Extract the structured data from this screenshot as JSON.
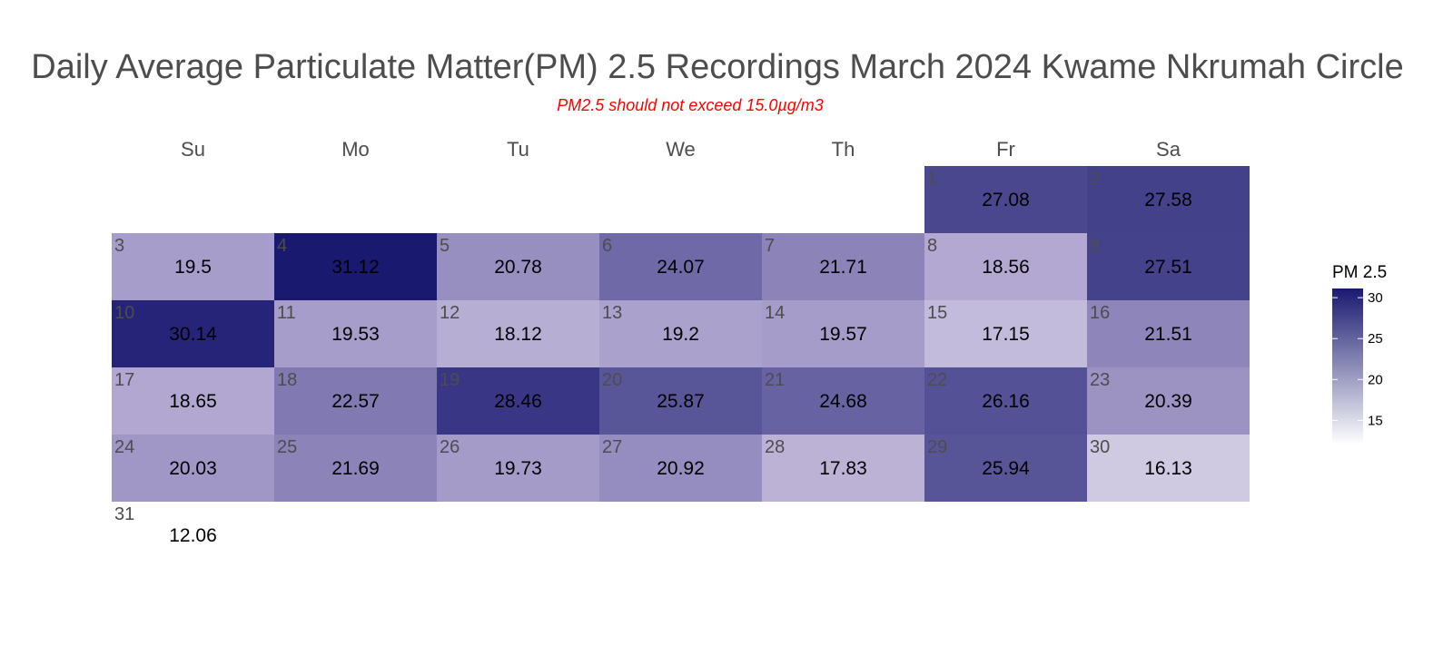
{
  "chart_data": {
    "type": "heatmap",
    "title": "Daily Average Particulate Matter(PM) 2.5 Recordings March 2024 Kwame Nkrumah Circle",
    "subtitle": "PM2.5 should not exceed 15.0µg/m3",
    "weekdays": [
      "Su",
      "Mo",
      "Tu",
      "We",
      "Th",
      "Fr",
      "Sa"
    ],
    "first_weekday_index": 5,
    "days": [
      1,
      2,
      3,
      4,
      5,
      6,
      7,
      8,
      9,
      10,
      11,
      12,
      13,
      14,
      15,
      16,
      17,
      18,
      19,
      20,
      21,
      22,
      23,
      24,
      25,
      26,
      27,
      28,
      29,
      30,
      31
    ],
    "values": [
      27.08,
      27.58,
      19.5,
      31.12,
      20.78,
      24.07,
      21.71,
      18.56,
      27.51,
      30.14,
      19.53,
      18.12,
      19.2,
      19.57,
      17.15,
      21.51,
      18.65,
      22.57,
      28.46,
      25.87,
      24.68,
      26.16,
      20.39,
      20.03,
      21.69,
      19.73,
      20.92,
      17.83,
      25.94,
      16.13,
      12.06
    ],
    "legend": {
      "title": "PM 2.5",
      "ticks": [
        15,
        20,
        25,
        30
      ],
      "range": [
        12.06,
        31.12
      ],
      "color_low": "#ffffff",
      "color_high": "#191970"
    }
  }
}
